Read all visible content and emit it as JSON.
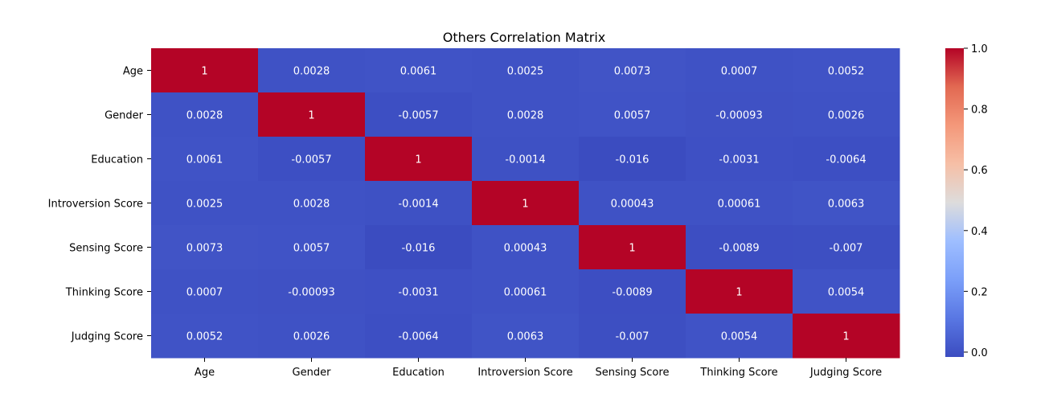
{
  "chart_data": {
    "type": "heatmap",
    "title": "Others Correlation Matrix",
    "xlabel": "",
    "ylabel": "",
    "x_labels": [
      "Age",
      "Gender",
      "Education",
      "Introversion Score",
      "Sensing Score",
      "Thinking Score",
      "Judging Score"
    ],
    "y_labels": [
      "Age",
      "Gender",
      "Education",
      "Introversion Score",
      "Sensing Score",
      "Thinking Score",
      "Judging Score"
    ],
    "values": [
      [
        1,
        0.0028,
        0.0061,
        0.0025,
        0.0073,
        0.0007,
        0.0052
      ],
      [
        0.0028,
        1,
        -0.0057,
        0.0028,
        0.0057,
        -0.00093,
        0.0026
      ],
      [
        0.0061,
        -0.0057,
        1,
        -0.0014,
        -0.016,
        -0.0031,
        -0.0064
      ],
      [
        0.0025,
        0.0028,
        -0.0014,
        1,
        0.00043,
        0.00061,
        0.0063
      ],
      [
        0.0073,
        0.0057,
        -0.016,
        0.00043,
        1,
        -0.0089,
        -0.007
      ],
      [
        0.0007,
        -0.00093,
        -0.0031,
        0.00061,
        -0.0089,
        1,
        0.0054
      ],
      [
        0.0052,
        0.0026,
        -0.0064,
        0.0063,
        -0.007,
        0.0054,
        1
      ]
    ],
    "annotations": [
      [
        "1",
        "0.0028",
        "0.0061",
        "0.0025",
        "0.0073",
        "0.0007",
        "0.0052"
      ],
      [
        "0.0028",
        "1",
        "-0.0057",
        "0.0028",
        "0.0057",
        "-0.00093",
        "0.0026"
      ],
      [
        "0.0061",
        "-0.0057",
        "1",
        "-0.0014",
        "-0.016",
        "-0.0031",
        "-0.0064"
      ],
      [
        "0.0025",
        "0.0028",
        "-0.0014",
        "1",
        "0.00043",
        "0.00061",
        "0.0063"
      ],
      [
        "0.0073",
        "0.0057",
        "-0.016",
        "0.00043",
        "1",
        "-0.0089",
        "-0.007"
      ],
      [
        "0.0007",
        "-0.00093",
        "-0.0031",
        "0.00061",
        "-0.0089",
        "1",
        "0.0054"
      ],
      [
        "0.0052",
        "0.0026",
        "-0.0064",
        "0.0063",
        "-0.007",
        "0.0054",
        "1"
      ]
    ],
    "colormap": "coolwarm",
    "color_range": [
      -0.016,
      1
    ],
    "colorbar_ticks": [
      "0.0",
      "0.2",
      "0.4",
      "0.6",
      "0.8",
      "1.0"
    ],
    "colorbar_tick_values": [
      0,
      0.2,
      0.4,
      0.6,
      0.8,
      1.0
    ],
    "colorbar_position": "right",
    "grid": false
  }
}
